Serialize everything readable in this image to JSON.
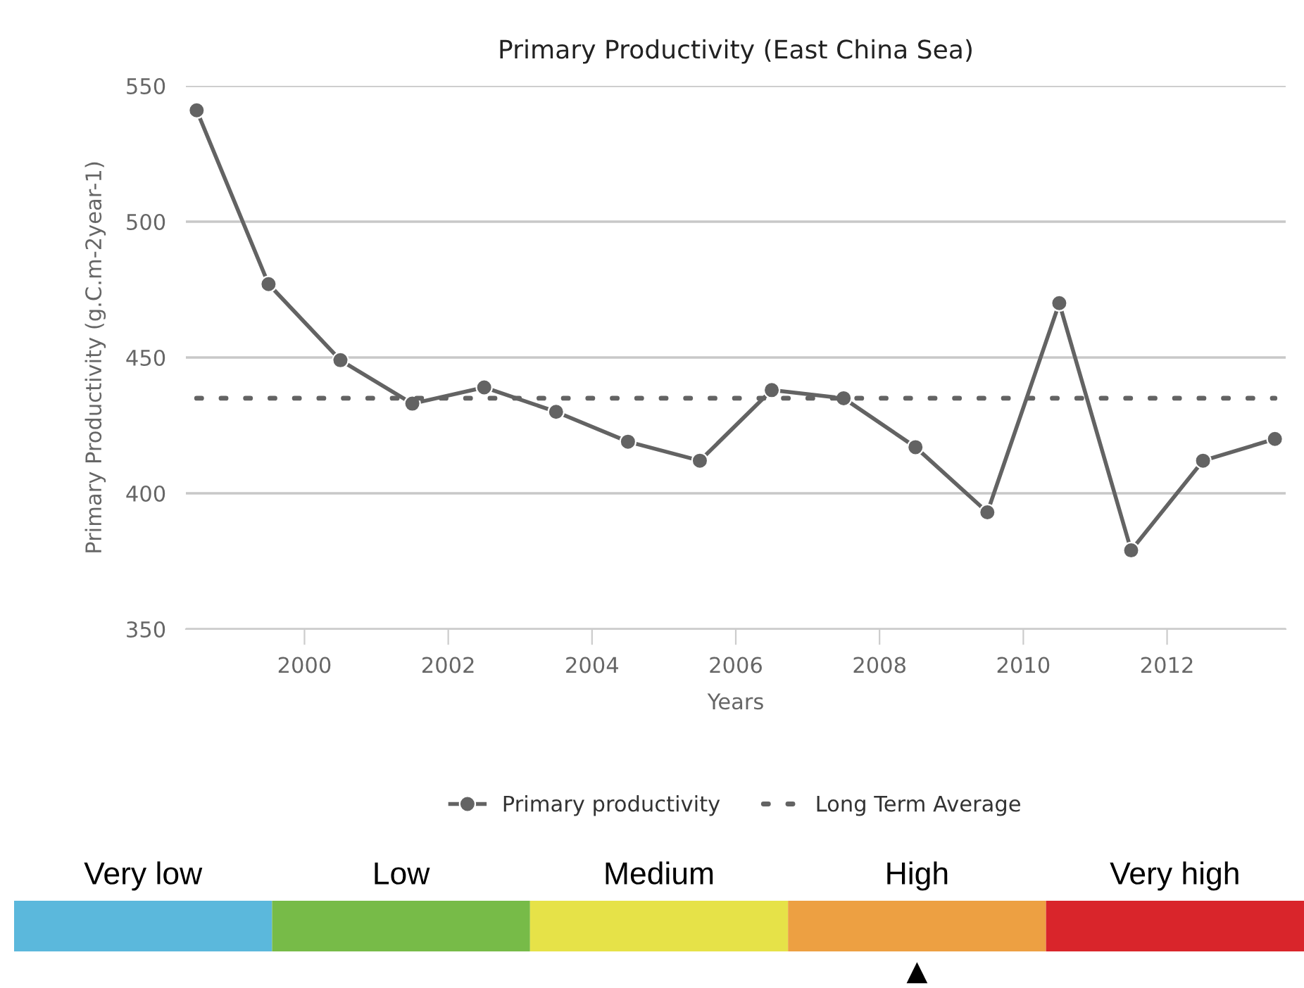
{
  "chart_data": [
    {
      "type": "line",
      "title": "Primary Productivity (East China Sea)",
      "xlabel": "Years",
      "ylabel": "Primary Productivity (g.C.m-2year-1)",
      "x": [
        1998.5,
        1999.5,
        2000.5,
        2001.5,
        2002.5,
        2003.5,
        2004.5,
        2005.5,
        2006.5,
        2007.5,
        2008.5,
        2009.5,
        2010.5,
        2011.5,
        2012.5,
        2013.5
      ],
      "series": [
        {
          "name": "Primary productivity",
          "color": "#636363",
          "marker": "circle",
          "line_style": "solid",
          "values": [
            541,
            477,
            449,
            433,
            439,
            430,
            419,
            412,
            438,
            435,
            417,
            393,
            470,
            379,
            412,
            420
          ]
        },
        {
          "name": "Long Term Average",
          "color": "#636363",
          "marker": "none",
          "line_style": "dotted",
          "x": [
            1998.5,
            2013.5
          ],
          "values": [
            435,
            435
          ]
        }
      ],
      "xlim": [
        1998.35,
        2013.65
      ],
      "xticks": [
        2000,
        2002,
        2004,
        2006,
        2008,
        2010,
        2012
      ],
      "ylim": [
        350,
        550
      ],
      "yticks": [
        350,
        400,
        450,
        500,
        550
      ],
      "grid": "y",
      "legend": "bottom"
    },
    {
      "type": "other",
      "categories": [
        "Very low",
        "Low",
        "Medium",
        "High",
        "Very high"
      ],
      "colors": [
        "#5bb8dc",
        "#77bb48",
        "#e6e248",
        "#eda042",
        "#d9252b"
      ],
      "annotations": [
        {
          "text": "▲",
          "x": "High"
        }
      ]
    }
  ]
}
